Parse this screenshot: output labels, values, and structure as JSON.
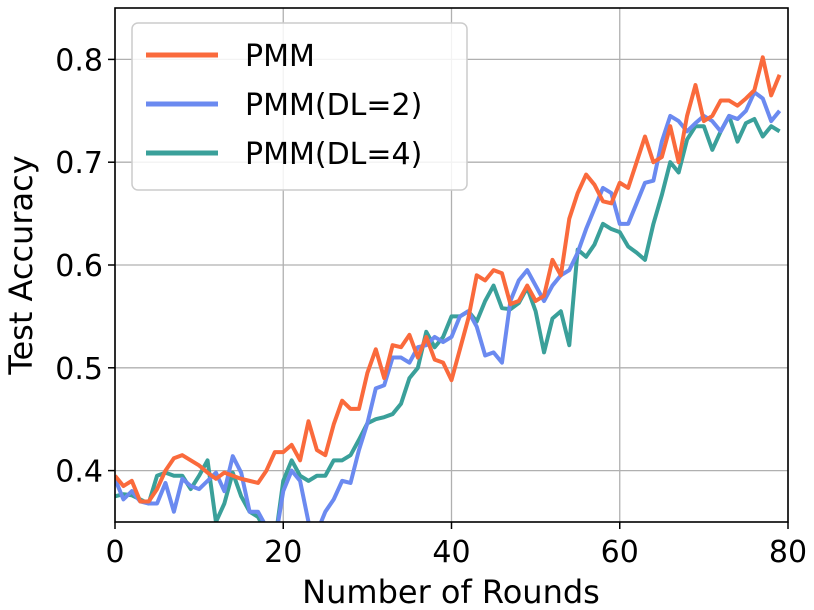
{
  "chart_data": {
    "type": "line",
    "xlabel": "Number of Rounds",
    "ylabel": "Test Accuracy",
    "xlim": [
      0,
      80
    ],
    "ylim": [
      0.35,
      0.85
    ],
    "xticks": [
      0,
      20,
      40,
      60,
      80
    ],
    "yticks": [
      0.4,
      0.5,
      0.6,
      0.7,
      0.8
    ],
    "xtick_labels": [
      "0",
      "20",
      "40",
      "60",
      "80"
    ],
    "ytick_labels": [
      "0.4",
      "0.5",
      "0.6",
      "0.7",
      "0.8"
    ],
    "grid": true,
    "legend_position": "top-left",
    "x": [
      0,
      1,
      2,
      3,
      4,
      5,
      6,
      7,
      8,
      9,
      10,
      11,
      12,
      13,
      14,
      15,
      16,
      17,
      18,
      19,
      20,
      21,
      22,
      23,
      24,
      25,
      26,
      27,
      28,
      29,
      30,
      31,
      32,
      33,
      34,
      35,
      36,
      37,
      38,
      39,
      40,
      41,
      42,
      43,
      44,
      45,
      46,
      47,
      48,
      49,
      50,
      51,
      52,
      53,
      54,
      55,
      56,
      57,
      58,
      59,
      60,
      61,
      62,
      63,
      64,
      65,
      66,
      67,
      68,
      69,
      70,
      71,
      72,
      73,
      74,
      75,
      76,
      77,
      78,
      79
    ],
    "series": [
      {
        "name": "PMM",
        "color": "#fa6a3c",
        "values": [
          0.395,
          0.385,
          0.39,
          0.37,
          0.37,
          0.382,
          0.4,
          0.412,
          0.415,
          0.41,
          0.405,
          0.398,
          0.392,
          0.398,
          0.395,
          0.392,
          0.39,
          0.388,
          0.4,
          0.418,
          0.418,
          0.425,
          0.41,
          0.448,
          0.42,
          0.415,
          0.445,
          0.468,
          0.46,
          0.46,
          0.495,
          0.518,
          0.49,
          0.522,
          0.52,
          0.532,
          0.51,
          0.53,
          0.508,
          0.505,
          0.488,
          0.518,
          0.548,
          0.59,
          0.585,
          0.595,
          0.592,
          0.562,
          0.565,
          0.58,
          0.565,
          0.57,
          0.605,
          0.59,
          0.645,
          0.67,
          0.688,
          0.678,
          0.662,
          0.66,
          0.68,
          0.675,
          0.7,
          0.725,
          0.7,
          0.705,
          0.735,
          0.7,
          0.745,
          0.775,
          0.74,
          0.745,
          0.76,
          0.76,
          0.755,
          0.762,
          0.77,
          0.802,
          0.765,
          0.785
        ]
      },
      {
        "name": "PMM(DL=2)",
        "color": "#6b8af0",
        "values": [
          0.392,
          0.372,
          0.38,
          0.37,
          0.368,
          0.368,
          0.388,
          0.36,
          0.392,
          0.385,
          0.382,
          0.39,
          0.398,
          0.38,
          0.414,
          0.398,
          0.36,
          0.36,
          0.345,
          0.33,
          0.38,
          0.4,
          0.39,
          0.35,
          0.34,
          0.36,
          0.372,
          0.39,
          0.388,
          0.42,
          0.446,
          0.48,
          0.483,
          0.51,
          0.51,
          0.505,
          0.52,
          0.522,
          0.53,
          0.525,
          0.53,
          0.55,
          0.555,
          0.54,
          0.512,
          0.515,
          0.505,
          0.565,
          0.585,
          0.595,
          0.58,
          0.565,
          0.58,
          0.59,
          0.595,
          0.612,
          0.635,
          0.655,
          0.675,
          0.67,
          0.64,
          0.64,
          0.66,
          0.68,
          0.682,
          0.72,
          0.745,
          0.74,
          0.73,
          0.738,
          0.745,
          0.74,
          0.73,
          0.745,
          0.742,
          0.75,
          0.768,
          0.762,
          0.74,
          0.75
        ]
      },
      {
        "name": "PMM(DL=4)",
        "color": "#3aa09a",
        "values": [
          0.375,
          0.377,
          0.376,
          0.372,
          0.368,
          0.395,
          0.398,
          0.395,
          0.395,
          0.382,
          0.395,
          0.41,
          0.35,
          0.368,
          0.398,
          0.375,
          0.36,
          0.355,
          0.34,
          0.33,
          0.39,
          0.41,
          0.395,
          0.39,
          0.395,
          0.395,
          0.41,
          0.41,
          0.415,
          0.43,
          0.446,
          0.45,
          0.452,
          0.455,
          0.465,
          0.49,
          0.5,
          0.535,
          0.52,
          0.53,
          0.55,
          0.55,
          0.555,
          0.545,
          0.565,
          0.58,
          0.558,
          0.557,
          0.563,
          0.578,
          0.555,
          0.515,
          0.548,
          0.555,
          0.522,
          0.615,
          0.608,
          0.62,
          0.64,
          0.635,
          0.632,
          0.618,
          0.612,
          0.605,
          0.64,
          0.668,
          0.7,
          0.69,
          0.722,
          0.735,
          0.735,
          0.712,
          0.73,
          0.745,
          0.72,
          0.738,
          0.742,
          0.725,
          0.735,
          0.73
        ]
      }
    ]
  }
}
